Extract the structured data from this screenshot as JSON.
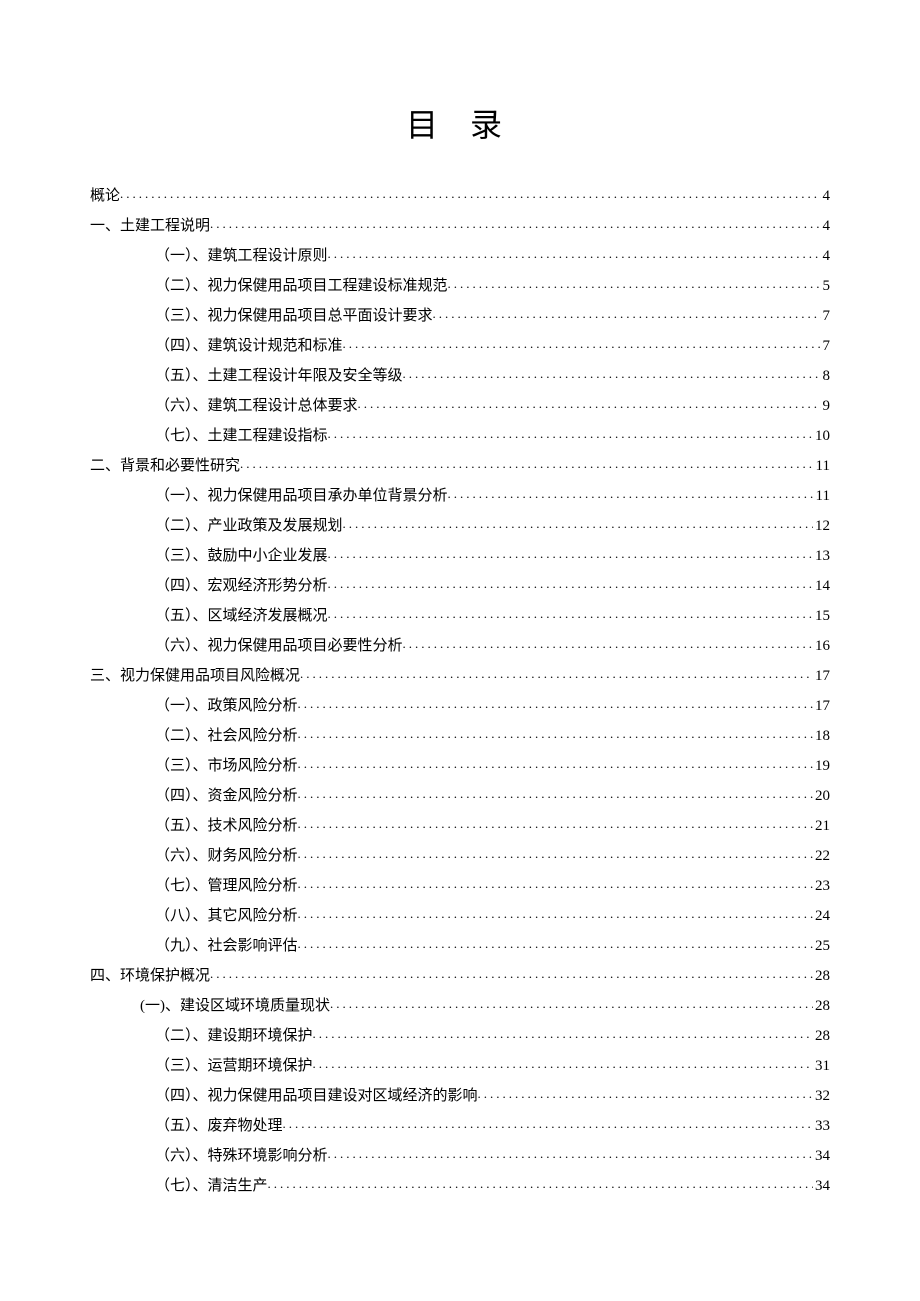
{
  "title": "目 录",
  "entries": [
    {
      "level": "level-0",
      "text": "概论",
      "page": "4"
    },
    {
      "level": "level-1",
      "text": "一、土建工程说明",
      "page": "4"
    },
    {
      "level": "level-2",
      "text": "（一）、建筑工程设计原则",
      "page": "4"
    },
    {
      "level": "level-2",
      "text": "（二）、视力保健用品项目工程建设标准规范",
      "page": "5"
    },
    {
      "level": "level-2",
      "text": "（三）、视力保健用品项目总平面设计要求",
      "page": "7"
    },
    {
      "level": "level-2",
      "text": "（四）、建筑设计规范和标准",
      "page": "7"
    },
    {
      "level": "level-2",
      "text": "（五）、土建工程设计年限及安全等级",
      "page": "8"
    },
    {
      "level": "level-2",
      "text": "（六）、建筑工程设计总体要求",
      "page": "9"
    },
    {
      "level": "level-2",
      "text": "（七）、土建工程建设指标",
      "page": "10"
    },
    {
      "level": "level-1",
      "text": "二、背景和必要性研究",
      "page": "11"
    },
    {
      "level": "level-2",
      "text": "（一）、视力保健用品项目承办单位背景分析",
      "page": "11"
    },
    {
      "level": "level-2",
      "text": "（二）、产业政策及发展规划",
      "page": "12"
    },
    {
      "level": "level-2",
      "text": "（三）、鼓励中小企业发展",
      "page": "13"
    },
    {
      "level": "level-2",
      "text": "（四）、宏观经济形势分析",
      "page": "14"
    },
    {
      "level": "level-2",
      "text": "（五）、区域经济发展概况",
      "page": "15"
    },
    {
      "level": "level-2",
      "text": "（六）、视力保健用品项目必要性分析",
      "page": "16"
    },
    {
      "level": "level-1",
      "text": "三、视力保健用品项目风险概况",
      "page": "17"
    },
    {
      "level": "level-2",
      "text": "（一）、政策风险分析",
      "page": "17"
    },
    {
      "level": "level-2",
      "text": "（二）、社会风险分析",
      "page": "18"
    },
    {
      "level": "level-2",
      "text": "（三）、市场风险分析",
      "page": "19"
    },
    {
      "level": "level-2",
      "text": "（四）、资金风险分析",
      "page": "20"
    },
    {
      "level": "level-2",
      "text": "（五）、技术风险分析",
      "page": "21"
    },
    {
      "level": "level-2",
      "text": "（六）、财务风险分析",
      "page": "22"
    },
    {
      "level": "level-2",
      "text": "（七）、管理风险分析",
      "page": "23"
    },
    {
      "level": "level-2",
      "text": "（八）、其它风险分析",
      "page": "24"
    },
    {
      "level": "level-2",
      "text": "（九）、社会影响评估",
      "page": "25"
    },
    {
      "level": "level-1",
      "text": "四、环境保护概况",
      "page": "28"
    },
    {
      "level": "level-2b",
      "text": "(一)、建设区域环境质量现状",
      "page": "28"
    },
    {
      "level": "level-2",
      "text": "（二）、建设期环境保护",
      "page": "28"
    },
    {
      "level": "level-2",
      "text": "（三）、运营期环境保护",
      "page": "31"
    },
    {
      "level": "level-2",
      "text": "（四）、视力保健用品项目建设对区域经济的影响",
      "page": "32"
    },
    {
      "level": "level-2",
      "text": "（五）、废弃物处理",
      "page": "33"
    },
    {
      "level": "level-2",
      "text": "（六）、特殊环境影响分析",
      "page": "34"
    },
    {
      "level": "level-2",
      "text": "（七）、清洁生产",
      "page": "34"
    }
  ]
}
